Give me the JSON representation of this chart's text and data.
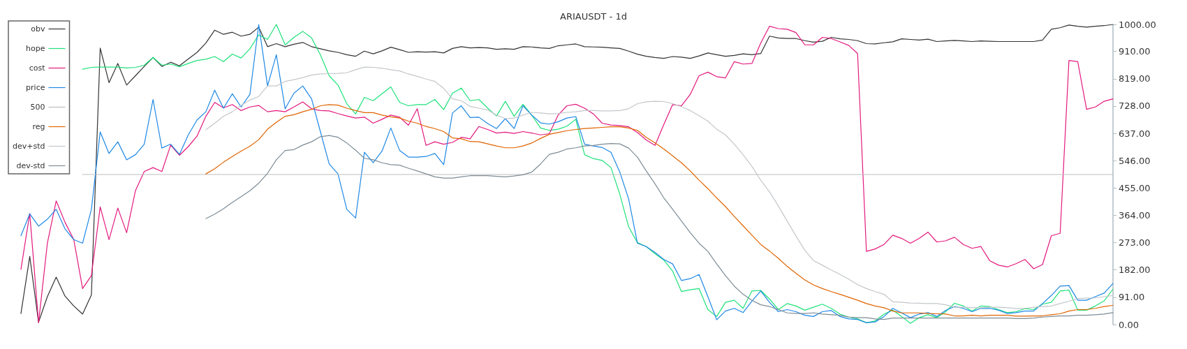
{
  "chart_data": {
    "type": "line",
    "title": "ARIAUSDT - 1d",
    "categories": [
      null,
      null,
      null,
      null,
      null,
      null,
      null,
      null,
      null,
      null,
      null,
      null,
      null,
      null,
      null,
      null,
      null,
      null,
      null,
      null,
      null,
      null,
      null,
      null,
      null,
      null,
      null,
      null,
      null,
      null,
      null,
      null,
      null,
      null,
      null,
      null,
      null,
      null,
      null,
      null,
      null,
      null,
      null,
      null,
      null,
      null,
      null,
      null,
      null,
      null,
      null,
      null,
      null,
      null,
      null,
      null,
      null,
      null,
      null,
      null,
      null,
      null,
      null,
      null,
      null,
      null,
      null,
      null,
      null,
      null,
      null,
      null,
      null,
      null,
      null,
      null,
      null,
      null,
      null,
      null,
      null,
      null,
      null,
      null,
      null,
      null,
      null,
      null,
      null,
      null,
      null,
      null,
      null,
      null,
      null,
      null,
      null,
      null,
      null,
      null,
      null,
      null,
      null,
      null,
      null,
      null,
      null,
      null,
      null,
      null,
      null,
      null,
      null,
      null,
      null,
      null,
      null,
      null,
      null,
      null,
      null,
      null,
      null,
      null,
      null
    ],
    "series": [
      {
        "name": "obv",
        "color": "#333333",
        "values": [
          37,
          227,
          8,
          93,
          158,
          95,
          62,
          35,
          99,
          921,
          806,
          870,
          798,
          829,
          860,
          890,
          860,
          874,
          862,
          885,
          907,
          938,
          981,
          967,
          974,
          961,
          967,
          991,
          926,
          936,
          926,
          934,
          940,
          926,
          919,
          912,
          907,
          899,
          894,
          911,
          902,
          912,
          924,
          916,
          907,
          909,
          908,
          909,
          905,
          920,
          926,
          922,
          923,
          922,
          917,
          919,
          917,
          926,
          925,
          922,
          920,
          929,
          932,
          935,
          926,
          925,
          924,
          922,
          920,
          911,
          901,
          894,
          890,
          887,
          893,
          891,
          887,
          895,
          905,
          899,
          894,
          897,
          902,
          899,
          903,
          961,
          955,
          953,
          953,
          946,
          941,
          944,
          957,
          952,
          950,
          946,
          936,
          935,
          939,
          942,
          952,
          950,
          948,
          951,
          943,
          945,
          947,
          945,
          943,
          945,
          944,
          943,
          943,
          943,
          943,
          943,
          948,
          984,
          989,
          998,
          994,
          991,
          994,
          996,
          1000
        ]
      },
      {
        "name": "hope",
        "color": "#1de27a",
        "values": [
          null,
          null,
          null,
          null,
          null,
          null,
          null,
          851,
          857,
          858,
          858,
          858,
          855,
          857,
          864,
          890,
          864,
          868,
          859,
          870,
          880,
          884,
          893,
          876,
          901,
          888,
          919,
          965,
          950,
          1000,
          932,
          957,
          977,
          955,
          899,
          829,
          798,
          736,
          702,
          757,
          746,
          769,
          792,
          740,
          729,
          733,
          733,
          750,
          716,
          771,
          788,
          746,
          750,
          721,
          695,
          744,
          694,
          734,
          698,
          655,
          647,
          651,
          661,
          684,
          566,
          553,
          547,
          523,
          434,
          326,
          273,
          260,
          236,
          215,
          178,
          110,
          116,
          120,
          50,
          27,
          74,
          81,
          54,
          112,
          114,
          85,
          50,
          70,
          62,
          48,
          58,
          68,
          54,
          35,
          25,
          19,
          6,
          12,
          35,
          48,
          27,
          4,
          23,
          33,
          23,
          43,
          71,
          62,
          45,
          62,
          60,
          50,
          40,
          43,
          53,
          50,
          68,
          74,
          112,
          115,
          48,
          48,
          62,
          79,
          118
        ]
      },
      {
        "name": "cost",
        "color": "#e3197e",
        "values": [
          184,
          370,
          6,
          271,
          412,
          341,
          283,
          120,
          163,
          392,
          283,
          388,
          306,
          446,
          510,
          523,
          510,
          598,
          564,
          593,
          628,
          694,
          740,
          722,
          733,
          713,
          725,
          730,
          709,
          713,
          709,
          725,
          742,
          719,
          713,
          712,
          703,
          695,
          688,
          691,
          671,
          684,
          698,
          691,
          664,
          719,
          597,
          609,
          601,
          607,
          624,
          619,
          660,
          650,
          638,
          641,
          637,
          643,
          638,
          632,
          636,
          698,
          729,
          734,
          721,
          702,
          671,
          665,
          663,
          659,
          640,
          615,
          597,
          667,
          733,
          729,
          767,
          829,
          841,
          826,
          822,
          876,
          868,
          870,
          938,
          994,
          986,
          984,
          973,
          932,
          932,
          957,
          953,
          942,
          930,
          903,
          244,
          252,
          267,
          298,
          287,
          271,
          287,
          308,
          275,
          279,
          291,
          267,
          254,
          260,
          213,
          198,
          192,
          203,
          217,
          186,
          200,
          296,
          304,
          880,
          876,
          717,
          725,
          744,
          752
        ]
      },
      {
        "name": "price",
        "color": "#1e88e5",
        "values": [
          296,
          369,
          328,
          351,
          384,
          319,
          283,
          271,
          384,
          642,
          570,
          609,
          549,
          566,
          601,
          750,
          588,
          601,
          567,
          632,
          682,
          709,
          781,
          721,
          769,
          725,
          767,
          1000,
          795,
          899,
          719,
          771,
          795,
          752,
          643,
          535,
          502,
          384,
          355,
          574,
          539,
          578,
          655,
          580,
          558,
          558,
          560,
          570,
          533,
          705,
          729,
          690,
          691,
          670,
          653,
          686,
          653,
          729,
          698,
          672,
          668,
          676,
          688,
          693,
          601,
          595,
          590,
          574,
          508,
          419,
          271,
          260,
          240,
          217,
          202,
          147,
          153,
          167,
          93,
          16,
          45,
          54,
          40,
          78,
          112,
          74,
          43,
          50,
          43,
          31,
          27,
          43,
          47,
          27,
          19,
          17,
          6,
          9,
          27,
          54,
          39,
          23,
          35,
          40,
          27,
          47,
          60,
          54,
          43,
          54,
          54,
          48,
          37,
          40,
          45,
          45,
          70,
          97,
          128,
          130,
          81,
          81,
          93,
          105,
          137
        ]
      },
      {
        "name": "500",
        "color": "#bdbdbd",
        "values": [
          null,
          null,
          null,
          null,
          null,
          null,
          null,
          500,
          500,
          500,
          500,
          500,
          500,
          500,
          500,
          500,
          500,
          500,
          500,
          500,
          500,
          500,
          500,
          500,
          500,
          500,
          500,
          500,
          500,
          500,
          500,
          500,
          500,
          500,
          500,
          500,
          500,
          500,
          500,
          500,
          500,
          500,
          500,
          500,
          500,
          500,
          500,
          500,
          500,
          500,
          500,
          500,
          500,
          500,
          500,
          500,
          500,
          500,
          500,
          500,
          500,
          500,
          500,
          500,
          500,
          500,
          500,
          500,
          500,
          500,
          500,
          500,
          500,
          500,
          500,
          500,
          500,
          500,
          500,
          500,
          500,
          500,
          500,
          500,
          500,
          500,
          500,
          500,
          500,
          500,
          500,
          500,
          500,
          500,
          500,
          500,
          500,
          500,
          500,
          500,
          500,
          500,
          500,
          500,
          500,
          500,
          500,
          500,
          500,
          500,
          500,
          500,
          500,
          500,
          500,
          500,
          500,
          500,
          500,
          500,
          500,
          500,
          500,
          500,
          500
        ]
      },
      {
        "name": "reg",
        "color": "#e06400",
        "values": [
          null,
          null,
          null,
          null,
          null,
          null,
          null,
          null,
          null,
          null,
          null,
          null,
          null,
          null,
          null,
          null,
          null,
          null,
          null,
          null,
          null,
          502,
          519,
          541,
          560,
          578,
          594,
          616,
          651,
          674,
          694,
          699,
          709,
          717,
          729,
          733,
          731,
          721,
          713,
          706,
          706,
          698,
          692,
          688,
          678,
          671,
          660,
          653,
          643,
          622,
          619,
          610,
          609,
          602,
          595,
          589,
          589,
          595,
          605,
          620,
          634,
          640,
          646,
          650,
          653,
          655,
          657,
          659,
          659,
          655,
          647,
          624,
          605,
          585,
          562,
          539,
          512,
          481,
          453,
          422,
          393,
          360,
          329,
          298,
          267,
          245,
          221,
          194,
          171,
          149,
          132,
          120,
          110,
          101,
          91,
          81,
          70,
          62,
          56,
          45,
          39,
          39,
          39,
          37,
          36,
          35,
          29,
          29,
          31,
          29,
          31,
          31,
          31,
          28,
          28,
          29,
          29,
          33,
          36,
          45,
          50,
          50,
          54,
          60,
          64
        ]
      },
      {
        "name": "dev+std",
        "color": "#c3c7cb",
        "values": [
          null,
          null,
          null,
          null,
          null,
          null,
          null,
          null,
          null,
          null,
          null,
          null,
          null,
          null,
          null,
          null,
          null,
          null,
          null,
          null,
          null,
          649,
          671,
          694,
          709,
          730,
          748,
          760,
          795,
          795,
          810,
          816,
          823,
          831,
          835,
          836,
          837,
          839,
          849,
          858,
          857,
          854,
          849,
          845,
          835,
          827,
          818,
          810,
          787,
          752,
          746,
          727,
          721,
          715,
          698,
          686,
          688,
          698,
          707,
          705,
          702,
          703,
          707,
          709,
          713,
          713,
          712,
          712,
          713,
          719,
          736,
          742,
          744,
          743,
          736,
          726,
          713,
          696,
          678,
          651,
          632,
          601,
          566,
          527,
          481,
          442,
          395,
          345,
          295,
          248,
          213,
          198,
          182,
          167,
          151,
          133,
          120,
          110,
          101,
          76,
          74,
          72,
          71,
          70,
          70,
          66,
          58,
          58,
          56,
          56,
          58,
          58,
          56,
          54,
          54,
          58,
          60,
          62,
          70,
          78,
          87,
          88,
          89,
          93,
          97
        ]
      },
      {
        "name": "dev-std",
        "color": "#7d8c96",
        "values": [
          null,
          null,
          null,
          null,
          null,
          null,
          null,
          null,
          null,
          null,
          null,
          null,
          null,
          null,
          null,
          null,
          null,
          null,
          null,
          null,
          null,
          353,
          368,
          386,
          407,
          426,
          446,
          471,
          504,
          549,
          580,
          583,
          598,
          609,
          626,
          630,
          624,
          605,
          581,
          554,
          549,
          539,
          533,
          531,
          521,
          512,
          502,
          492,
          488,
          488,
          492,
          496,
          496,
          496,
          494,
          492,
          495,
          499,
          508,
          535,
          567,
          574,
          585,
          589,
          595,
          597,
          601,
          603,
          602,
          588,
          558,
          512,
          469,
          422,
          384,
          345,
          306,
          271,
          244,
          202,
          163,
          128,
          101,
          81,
          66,
          60,
          50,
          39,
          37,
          37,
          39,
          35,
          33,
          31,
          25,
          23,
          23,
          19,
          17,
          22,
          22,
          22,
          22,
          22,
          22,
          22,
          22,
          22,
          22,
          22,
          22,
          22,
          22,
          20,
          20,
          22,
          25,
          27,
          29,
          29,
          31,
          31,
          33,
          35,
          40
        ]
      }
    ],
    "ylim": [
      0,
      1000
    ],
    "yticks": [
      {
        "value": 0,
        "label": "0.00"
      },
      {
        "value": 91,
        "label": "91.00"
      },
      {
        "value": 182,
        "label": "182.00"
      },
      {
        "value": 273,
        "label": "273.00"
      },
      {
        "value": 364,
        "label": "364.00"
      },
      {
        "value": 455,
        "label": "455.00"
      },
      {
        "value": 546,
        "label": "546.00"
      },
      {
        "value": 637,
        "label": "637.00"
      },
      {
        "value": 728,
        "label": "728.00"
      },
      {
        "value": 819,
        "label": "819.00"
      },
      {
        "value": 910,
        "label": "910.00"
      },
      {
        "value": 1000,
        "label": "1000.00"
      }
    ],
    "tick_labels": "y",
    "legend": "top left",
    "marker": "none"
  }
}
